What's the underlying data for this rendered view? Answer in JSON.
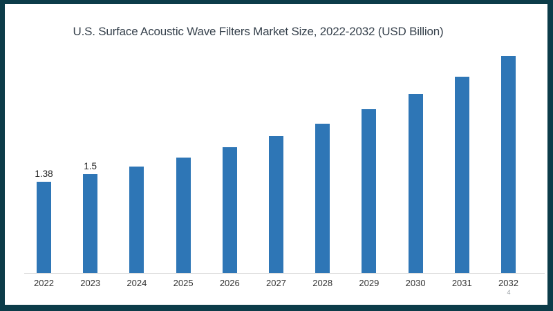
{
  "frame": {
    "border_color": "#0c3c49",
    "canvas_color": "#ffffff"
  },
  "page_number": "4",
  "chart_data": {
    "type": "bar",
    "title": "U.S. Surface Acoustic Wave Filters Market Size, 2022-2032 (USD Billion)",
    "categories": [
      "2022",
      "2023",
      "2024",
      "2025",
      "2026",
      "2027",
      "2028",
      "2029",
      "2030",
      "2031",
      "2032"
    ],
    "values": [
      1.38,
      1.5,
      1.61,
      1.75,
      1.9,
      2.07,
      2.26,
      2.48,
      2.71,
      2.97,
      3.28
    ],
    "data_labels": [
      "1.38",
      "1.5",
      "",
      "",
      "",
      "",
      "",
      "",
      "",
      "",
      ""
    ],
    "xlabel": "",
    "ylabel": "",
    "ylim": [
      0,
      3.6
    ],
    "grid": false,
    "legend": false,
    "y_axis_visible": false,
    "x_axis_line": true,
    "bar_color": "#2e76b6",
    "axis_line_color": "#d9d9d9",
    "title_color": "#36414c",
    "tick_label_color": "#333333",
    "data_label_color": "#222222",
    "page_number_color": "#9aa0a6"
  }
}
